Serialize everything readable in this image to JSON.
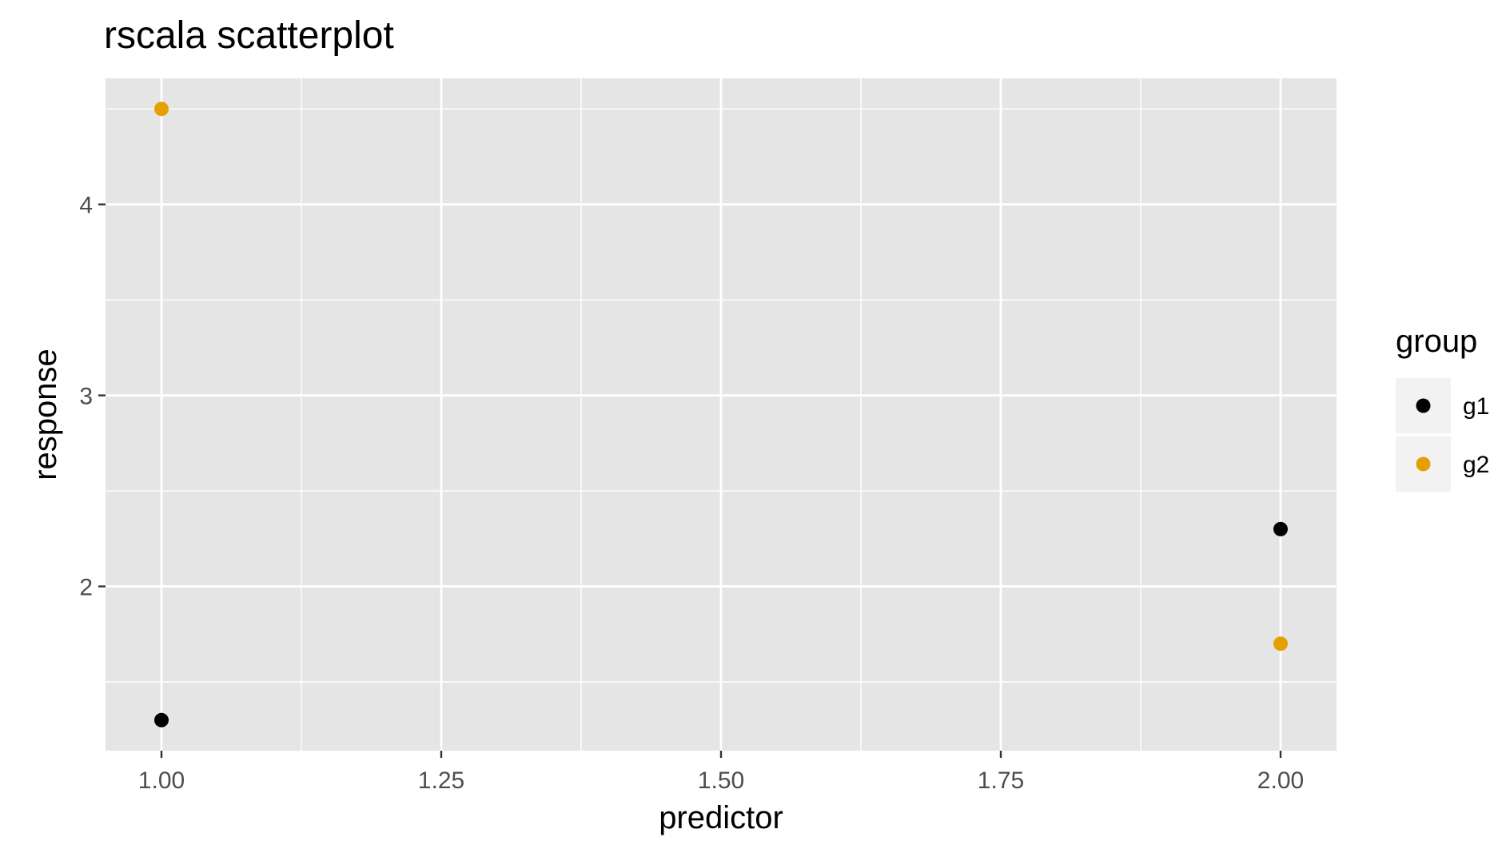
{
  "chart_data": {
    "type": "scatter",
    "title": "rscala scatterplot",
    "xlabel": "predictor",
    "ylabel": "response",
    "xlim": [
      0.95,
      2.05
    ],
    "ylim": [
      1.14,
      4.66
    ],
    "x_ticks": [
      1.0,
      1.25,
      1.5,
      1.75,
      2.0
    ],
    "x_tick_labels": [
      "1.00",
      "1.25",
      "1.50",
      "1.75",
      "2.00"
    ],
    "x_minor": [
      1.125,
      1.375,
      1.625,
      1.875
    ],
    "y_ticks": [
      2,
      3,
      4
    ],
    "y_tick_labels": [
      "2",
      "3",
      "4"
    ],
    "y_minor": [
      1.5,
      2.5,
      3.5,
      4.5
    ],
    "grid": true,
    "panel_background": "#e5e5e5",
    "grid_color": "#ffffff",
    "legend": {
      "title": "group",
      "position": "right"
    },
    "series": [
      {
        "name": "g1",
        "color": "#000000",
        "points": [
          {
            "x": 1.0,
            "y": 1.3
          },
          {
            "x": 2.0,
            "y": 2.3
          }
        ]
      },
      {
        "name": "g2",
        "color": "#e69f00",
        "points": [
          {
            "x": 1.0,
            "y": 4.5
          },
          {
            "x": 2.0,
            "y": 1.7
          }
        ]
      }
    ]
  }
}
